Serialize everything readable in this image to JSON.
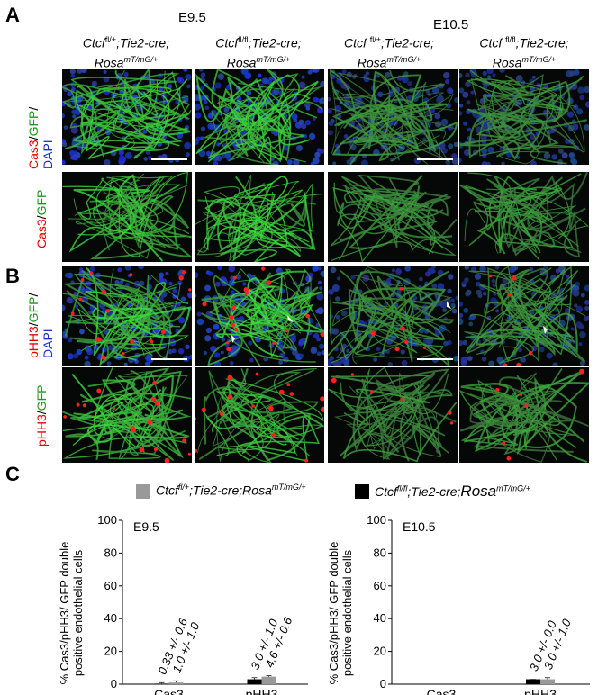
{
  "panels": {
    "A": "A",
    "B": "B",
    "C": "C"
  },
  "stages": {
    "e95": "E9.5",
    "e105": "E10.5"
  },
  "genotypes": [
    {
      "line1_prefix": "Ctcf",
      "line1_sup": "fl/+",
      "line1_suffix": ";Tie2-cre;",
      "line2": "Rosa",
      "line2_sup": "mT/mG/+"
    },
    {
      "line1_prefix": "Ctcf",
      "line1_sup": "fl/fl",
      "line1_suffix": ";Tie2-cre;",
      "line2": "Rosa",
      "line2_sup": "mT/mG/+"
    },
    {
      "line1_prefix": "Ctcf ",
      "line1_sup": "fl/+",
      "line1_suffix": ";Tie2-cre;",
      "line2": "Rosa",
      "line2_sup": "mT/mG/+"
    },
    {
      "line1_prefix": "Ctcf ",
      "line1_sup": "fl/fl",
      "line1_suffix": ";Tie2-cre;",
      "line2": "Rosa",
      "line2_sup": "mT/mG/+"
    }
  ],
  "row_labels": {
    "row1": {
      "a": "Cas3",
      "b": "/",
      "c": "GFP",
      "d": "/",
      "e": "DAPI"
    },
    "row2": {
      "a": "Cas3",
      "b": "/",
      "c": "GFP"
    },
    "row3": {
      "a": "pHH3",
      "b": "/",
      "c": "GFP",
      "d": "/",
      "e": "DAPI"
    },
    "row4": {
      "a": "pHH3",
      "b": "/",
      "c": "GFP"
    }
  },
  "legend": {
    "item1": {
      "prefix": "Ctcf",
      "sup": "fl/+",
      "mid": ";Tie2-cre;",
      "rosa": "Rosa",
      "rosa_sup": "mT/mG/+",
      "color": "#999999"
    },
    "item2": {
      "prefix": "Ctcf",
      "sup": "fl/fl",
      "mid": ";Tie2-cre;",
      "rosa": "Rosa",
      "rosa_sup": "mT/mG/+",
      "color": "#000000"
    }
  },
  "colors": {
    "red": "#e00000",
    "green": "#1a9a1a",
    "blue": "#1b2ecf"
  },
  "chart_data": [
    {
      "type": "bar",
      "title": "E9.5",
      "ylabel_line1": "% Cas3/pHH3/ GFP double",
      "ylabel_line2": "positive endothelial cells",
      "categories": [
        "Cas3",
        "pHH3"
      ],
      "yticks": [
        "0",
        "20",
        "40",
        "60",
        "80",
        "100"
      ],
      "ylim": [
        0,
        100
      ],
      "series": [
        {
          "values": [
            0.33,
            3.0
          ],
          "errors": [
            0.6,
            1.0
          ],
          "color": "#000000"
        },
        {
          "values": [
            1.0,
            4.6
          ],
          "errors": [
            1.0,
            0.6
          ],
          "color": "#999999"
        }
      ],
      "bar_labels": [
        [
          "0.33 +/- 0.6",
          "3.0 +/- 1.0"
        ],
        [
          "1.0 +/- 1.0",
          "4.6 +/- 0.6"
        ]
      ]
    },
    {
      "type": "bar",
      "title": "E10.5",
      "ylabel_line1": "% Cas3/pHH3/ GFP double",
      "ylabel_line2": "positive endothelial cells",
      "categories": [
        "Cas3",
        "pHH3"
      ],
      "yticks": [
        "0",
        "20",
        "40",
        "60",
        "80",
        "100"
      ],
      "ylim": [
        0,
        100
      ],
      "series": [
        {
          "values": [
            0,
            3.0
          ],
          "errors": [
            0,
            0.0
          ],
          "color": "#000000"
        },
        {
          "values": [
            0,
            3.0
          ],
          "errors": [
            0,
            1.0
          ],
          "color": "#999999"
        }
      ],
      "bar_labels": [
        [
          "",
          "3.0 +/- 0.0"
        ],
        [
          "",
          "3.0 +/- 1.0"
        ]
      ]
    }
  ]
}
